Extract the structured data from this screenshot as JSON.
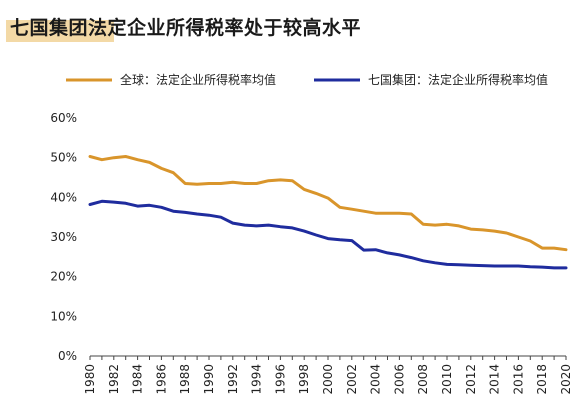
{
  "chart_data": {
    "type": "line",
    "title": "七国集团法定企业所得税率处于较高水平",
    "x": [
      1980,
      1981,
      1982,
      1983,
      1984,
      1985,
      1986,
      1987,
      1988,
      1989,
      1990,
      1991,
      1992,
      1993,
      1994,
      1995,
      1996,
      1997,
      1998,
      1999,
      2000,
      2001,
      2002,
      2003,
      2004,
      2005,
      2006,
      2007,
      2008,
      2009,
      2010,
      2011,
      2012,
      2013,
      2014,
      2015,
      2016,
      2017,
      2018,
      2019,
      2020
    ],
    "x_tick_labels": [
      "1980",
      "1982",
      "1984",
      "1986",
      "1988",
      "1990",
      "1992",
      "1994",
      "1996",
      "1998",
      "2000",
      "2002",
      "2004",
      "2006",
      "2008",
      "2010",
      "2012",
      "2014",
      "2016",
      "2018",
      "2020"
    ],
    "y_tick_labels": [
      "0%",
      "10%",
      "20%",
      "30%",
      "40%",
      "50%",
      "60%"
    ],
    "ylim": [
      0,
      60
    ],
    "y_unit": "%",
    "legend_position": "top",
    "series": [
      {
        "name": "全球：法定企业所得税率均值",
        "color": "#d9952b",
        "values": [
          50.3,
          49.5,
          50.0,
          50.3,
          49.5,
          48.8,
          47.3,
          46.2,
          43.5,
          43.3,
          43.5,
          43.5,
          43.8,
          43.5,
          43.5,
          44.2,
          44.4,
          44.2,
          42.0,
          41.0,
          39.8,
          37.5,
          37.0,
          36.5,
          36.0,
          36.0,
          36.0,
          35.8,
          33.2,
          33.0,
          33.2,
          32.8,
          32.0,
          31.8,
          31.5,
          31.0,
          30.0,
          29.0,
          27.2,
          27.2,
          26.8
        ]
      },
      {
        "name": "七国集团：法定企业所得税率均值",
        "color": "#1f2c9e",
        "values": [
          38.2,
          39.0,
          38.8,
          38.5,
          37.8,
          38.0,
          37.5,
          36.5,
          36.2,
          35.8,
          35.5,
          35.0,
          33.5,
          33.0,
          32.8,
          33.0,
          32.6,
          32.3,
          31.5,
          30.5,
          29.6,
          29.3,
          29.1,
          26.7,
          26.8,
          26.0,
          25.5,
          24.8,
          24.0,
          23.5,
          23.1,
          23.0,
          22.9,
          22.8,
          22.7,
          22.7,
          22.7,
          22.5,
          22.4,
          22.2,
          22.2
        ]
      }
    ]
  }
}
